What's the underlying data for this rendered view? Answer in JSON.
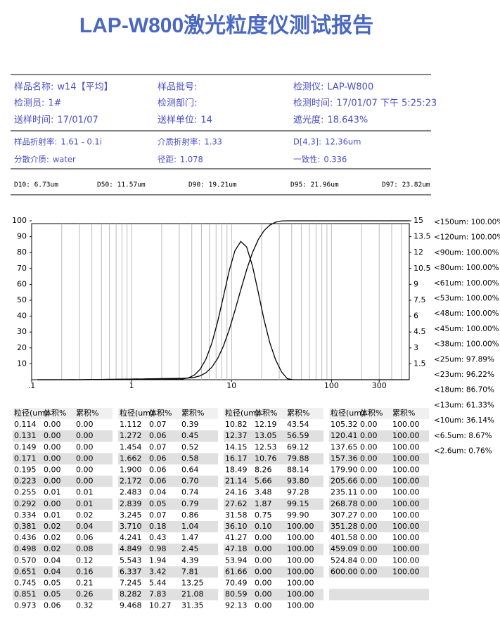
{
  "header": {
    "title": "LAP-W800激光粒度仪测试报告"
  },
  "info": [
    [
      {
        "label": "样品名称:",
        "value": "w14【平均】"
      },
      {
        "label": "样品批号:"
      },
      {
        "label": "检测仪:",
        "value": "LAP-W800"
      }
    ],
    [
      {
        "label": "检测员:",
        "value": "1#"
      },
      {
        "label": "检测部门:"
      },
      {
        "label": "检测时间:",
        "value": "17/01/07 下午 5:25:23"
      }
    ],
    [
      {
        "label": "送样时间:",
        "value": "17/01/07"
      },
      {
        "label": "送样单位:",
        "value": "14"
      },
      {
        "label": "遮光度:",
        "value": "18.643%"
      }
    ],
    [
      {
        "label": "样品折射率:",
        "value": "1.61 - 0.1i"
      },
      {
        "label": "介质折射率:",
        "value": "1.33"
      },
      {
        "label": "D[4,3]:",
        "value": "12.36um"
      }
    ],
    [
      {
        "label": "分散介质:",
        "value": "water"
      },
      {
        "label": "径距:",
        "value": "1.078"
      },
      {
        "label": "一致性:",
        "value": "0.336"
      }
    ]
  ],
  "d_values": [
    "D10: 6.73um",
    "D50: 11.57um",
    "D90: 19.21um",
    "D95: 21.96um",
    "D97: 23.82um"
  ],
  "chart_data": {
    "type": "line",
    "log_x": true,
    "grid": true,
    "xlim": [
      0.1,
      600
    ],
    "xticks": [
      {
        "value": 0.1,
        "label": ".1"
      },
      1,
      10,
      100,
      300
    ],
    "ylim": [
      0,
      100
    ],
    "yticks": [
      10,
      20,
      30,
      40,
      50,
      60,
      70,
      80,
      90,
      100
    ],
    "y2lim": [
      0,
      15
    ],
    "y2ticks": [
      1.5,
      3,
      4.5,
      6,
      7.5,
      9,
      10.5,
      12,
      13.5,
      15
    ],
    "x": [
      0.114,
      0.131,
      0.149,
      0.171,
      0.195,
      0.223,
      0.255,
      0.292,
      0.334,
      0.381,
      0.436,
      0.498,
      0.57,
      0.651,
      0.745,
      0.851,
      0.973,
      1.112,
      1.272,
      1.454,
      1.662,
      1.9,
      2.172,
      2.483,
      2.839,
      3.245,
      3.71,
      4.241,
      4.849,
      5.543,
      6.337,
      7.245,
      8.282,
      9.468,
      10.82,
      12.37,
      14.15,
      16.17,
      18.49,
      21.14,
      24.16,
      27.62,
      31.58,
      36.1,
      41.27,
      47.18,
      53.94,
      61.66,
      70.49,
      80.59,
      92.13,
      105.32,
      120.41,
      137.65,
      157.36,
      179.9,
      205.66,
      235.11,
      268.78,
      307.27,
      351.28,
      401.58,
      459.09,
      524.84,
      600.0
    ],
    "series": [
      {
        "color": "#000000",
        "values": [
          0,
          0,
          0,
          0,
          0,
          0,
          0.01,
          0.01,
          0.02,
          0.04,
          0.06,
          0.08,
          0.12,
          0.16,
          0.21,
          0.26,
          0.32,
          0.39,
          0.45,
          0.52,
          0.58,
          0.64,
          0.7,
          0.74,
          0.79,
          0.86,
          1.04,
          1.47,
          2.45,
          4.39,
          7.81,
          13.25,
          21.08,
          31.35,
          43.54,
          56.59,
          69.12,
          79.88,
          88.14,
          93.8,
          97.28,
          99.15,
          99.9,
          100,
          100,
          100,
          100,
          100,
          100,
          100,
          100,
          100,
          100,
          100,
          100,
          100,
          100,
          100,
          100,
          100,
          100,
          100,
          100,
          100,
          100
        ]
      },
      {
        "color": "#000000",
        "axis": "y2",
        "values": [
          0,
          0,
          0,
          0,
          0,
          0,
          0.01,
          0,
          0.01,
          0.02,
          0.02,
          0.02,
          0.04,
          0.04,
          0.05,
          0.05,
          0.06,
          0.07,
          0.06,
          0.07,
          0.06,
          0.06,
          0.06,
          0.04,
          0.05,
          0.07,
          0.18,
          0.43,
          0.98,
          1.94,
          3.42,
          5.44,
          7.83,
          10.27,
          12.19,
          13.05,
          12.53,
          10.76,
          8.26,
          5.66,
          3.48,
          1.87,
          0.75,
          0.1,
          0,
          0,
          0,
          0,
          0,
          0,
          0,
          0,
          0,
          0,
          0,
          0,
          0,
          0,
          0,
          0,
          0,
          0,
          0,
          0,
          0
        ]
      }
    ]
  },
  "side_list": [
    "<150um: 100.00%",
    "<120um: 100.00%",
    "<90um: 100.00%",
    "<80um: 100.00%",
    "<61um: 100.00%",
    "<53um: 100.00%",
    "<48um: 100.00%",
    "<45um: 100.00%",
    "<38um: 100.00%",
    "<25um: 97.89%",
    "<23um: 96.22%",
    "<18um: 86.70%",
    "<13um: 61.33%",
    "<10um: 36.14%",
    "<6.5um: 8.67%",
    "<2.6um: 0.76%"
  ],
  "tables": [
    {
      "headers": [
        "粒径(um)",
        "体积%",
        "累积%"
      ],
      "rows": [
        [
          "0.114",
          "0.00",
          "0.00"
        ],
        [
          "0.131",
          "0.00",
          "0.00"
        ],
        [
          "0.149",
          "0.00",
          "0.00"
        ],
        [
          "0.171",
          "0.00",
          "0.00"
        ],
        [
          "0.195",
          "0.00",
          "0.00"
        ],
        [
          "0.223",
          "0.00",
          "0.00"
        ],
        [
          "0.255",
          "0.01",
          "0.01"
        ],
        [
          "0.292",
          "0.00",
          "0.01"
        ],
        [
          "0.334",
          "0.01",
          "0.02"
        ],
        [
          "0.381",
          "0.02",
          "0.04"
        ],
        [
          "0.436",
          "0.02",
          "0.06"
        ],
        [
          "0.498",
          "0.02",
          "0.08"
        ],
        [
          "0.570",
          "0.04",
          "0.12"
        ],
        [
          "0.651",
          "0.04",
          "0.16"
        ],
        [
          "0.745",
          "0.05",
          "0.21"
        ],
        [
          "0.851",
          "0.05",
          "0.26"
        ],
        [
          "0.973",
          "0.06",
          "0.32"
        ]
      ]
    },
    {
      "headers": [
        "粒径(um)",
        "体积%",
        "累积%"
      ],
      "rows": [
        [
          "1.112",
          "0.07",
          "0.39"
        ],
        [
          "1.272",
          "0.06",
          "0.45"
        ],
        [
          "1.454",
          "0.07",
          "0.52"
        ],
        [
          "1.662",
          "0.06",
          "0.58"
        ],
        [
          "1.900",
          "0.06",
          "0.64"
        ],
        [
          "2.172",
          "0.06",
          "0.70"
        ],
        [
          "2.483",
          "0.04",
          "0.74"
        ],
        [
          "2.839",
          "0.05",
          "0.79"
        ],
        [
          "3.245",
          "0.07",
          "0.86"
        ],
        [
          "3.710",
          "0.18",
          "1.04"
        ],
        [
          "4.241",
          "0.43",
          "1.47"
        ],
        [
          "4.849",
          "0.98",
          "2.45"
        ],
        [
          "5.543",
          "1.94",
          "4.39"
        ],
        [
          "6.337",
          "3.42",
          "7.81"
        ],
        [
          "7.245",
          "5.44",
          "13.25"
        ],
        [
          "8.282",
          "7.83",
          "21.08"
        ],
        [
          "9.468",
          "10.27",
          "31.35"
        ]
      ]
    },
    {
      "headers": [
        "粒径(um)",
        "体积%",
        "累积%"
      ],
      "rows": [
        [
          "10.82",
          "12.19",
          "43.54"
        ],
        [
          "12.37",
          "13.05",
          "56.59"
        ],
        [
          "14.15",
          "12.53",
          "69.12"
        ],
        [
          "16.17",
          "10.76",
          "79.88"
        ],
        [
          "18.49",
          "8.26",
          "88.14"
        ],
        [
          "21.14",
          "5.66",
          "93.80"
        ],
        [
          "24.16",
          "3.48",
          "97.28"
        ],
        [
          "27.62",
          "1.87",
          "99.15"
        ],
        [
          "31.58",
          "0.75",
          "99.90"
        ],
        [
          "36.10",
          "0.10",
          "100.00"
        ],
        [
          "41.27",
          "0.00",
          "100.00"
        ],
        [
          "47.18",
          "0.00",
          "100.00"
        ],
        [
          "53.94",
          "0.00",
          "100.00"
        ],
        [
          "61.66",
          "0.00",
          "100.00"
        ],
        [
          "70.49",
          "0.00",
          "100.00"
        ],
        [
          "80.59",
          "0.00",
          "100.00"
        ],
        [
          "92.13",
          "0.00",
          "100.00"
        ]
      ]
    },
    {
      "headers": [
        "粒径(um)",
        "体积%",
        "累积%"
      ],
      "rows": [
        [
          "105.32",
          "0.00",
          "100.00"
        ],
        [
          "120.41",
          "0.00",
          "100.00"
        ],
        [
          "137.65",
          "0.00",
          "100.00"
        ],
        [
          "157.36",
          "0.00",
          "100.00"
        ],
        [
          "179.90",
          "0.00",
          "100.00"
        ],
        [
          "205.66",
          "0.00",
          "100.00"
        ],
        [
          "235.11",
          "0.00",
          "100.00"
        ],
        [
          "268.78",
          "0.00",
          "100.00"
        ],
        [
          "307.27",
          "0.00",
          "100.00"
        ],
        [
          "351.28",
          "0.00",
          "100.00"
        ],
        [
          "401.58",
          "0.00",
          "100.00"
        ],
        [
          "459.09",
          "0.00",
          "100.00"
        ],
        [
          "524.84",
          "0.00",
          "100.00"
        ],
        [
          "600.00",
          "0.00",
          "100.00"
        ]
      ]
    }
  ]
}
